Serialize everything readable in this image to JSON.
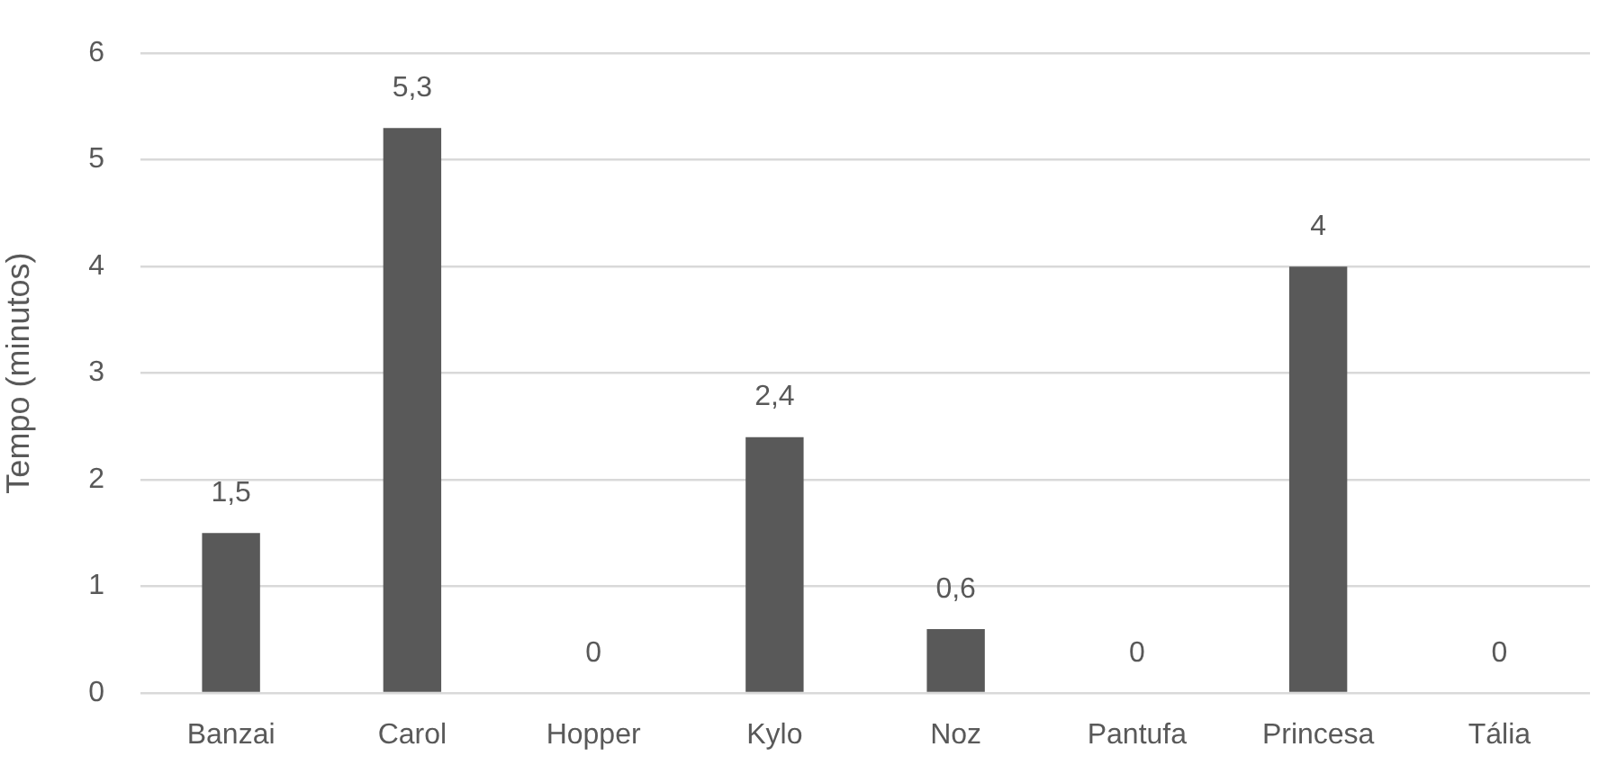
{
  "chart_data": {
    "type": "bar",
    "ylabel": "Tempo (minutos)",
    "categories": [
      "Banzai",
      "Carol",
      "Hopper",
      "Kylo",
      "Noz",
      "Pantufa",
      "Princesa",
      "Tália"
    ],
    "values": [
      1.5,
      5.3,
      0,
      2.4,
      0.6,
      0,
      4,
      0
    ],
    "color": "#595959",
    "value_labels": [
      "1,5",
      "5,3",
      "0",
      "2,4",
      "0,6",
      "0",
      "4",
      "0"
    ],
    "ylim": [
      0,
      6
    ],
    "yticks": [
      0,
      1,
      2,
      3,
      4,
      5,
      6
    ],
    "grid": "y"
  }
}
